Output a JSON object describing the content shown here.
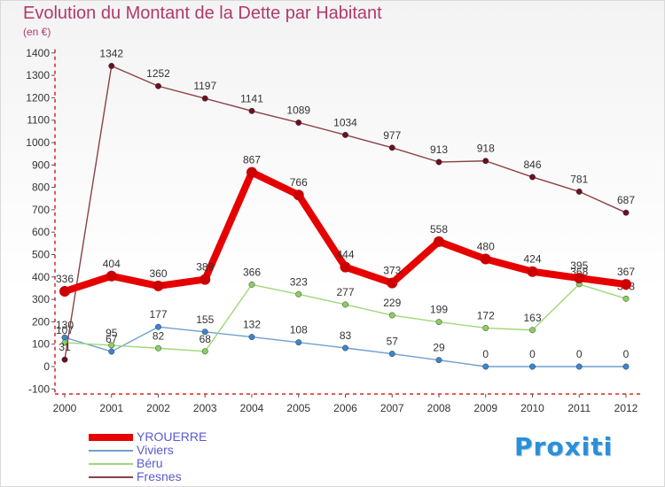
{
  "header": {
    "title": "Evolution du Montant de la Dette par Habitant",
    "subtitle": "(en €)"
  },
  "brand": {
    "text": "Proxiti"
  },
  "chart_data": {
    "type": "line",
    "title": "Evolution du Montant de la Dette par Habitant",
    "subtitle": "(en €)",
    "categories": [
      "2000",
      "2001",
      "2002",
      "2003",
      "2004",
      "2005",
      "2006",
      "2007",
      "2008",
      "2009",
      "2010",
      "2011",
      "2012"
    ],
    "ylim": [
      -100,
      1400
    ],
    "yticks": [
      -100,
      0,
      100,
      200,
      300,
      400,
      500,
      600,
      700,
      800,
      900,
      1000,
      1100,
      1200,
      1300,
      1400
    ],
    "grid": false,
    "legend_position": "bottom-left",
    "series": [
      {
        "name": "YROUERRE",
        "color": "#e60000",
        "marker": "#cc0000",
        "width": "thick",
        "values": [
          336,
          404,
          360,
          389,
          867,
          766,
          444,
          373,
          558,
          480,
          424,
          395,
          367
        ]
      },
      {
        "name": "Viviers",
        "color": "#6fa0d0",
        "marker": "#3a86d0",
        "width": "thin",
        "values": [
          130,
          67,
          177,
          155,
          132,
          108,
          83,
          57,
          29,
          0,
          0,
          0,
          0
        ]
      },
      {
        "name": "Béru",
        "color": "#a0d878",
        "marker": "#88d060",
        "width": "thin",
        "values": [
          107,
          95,
          82,
          68,
          366,
          323,
          277,
          229,
          199,
          172,
          163,
          368,
          303
        ]
      },
      {
        "name": "Fresnes",
        "color": "#8a4048",
        "marker": "#6a1020",
        "width": "thin",
        "values": [
          31,
          1342,
          1252,
          1197,
          1141,
          1089,
          1034,
          977,
          913,
          918,
          846,
          781,
          687
        ]
      }
    ]
  }
}
